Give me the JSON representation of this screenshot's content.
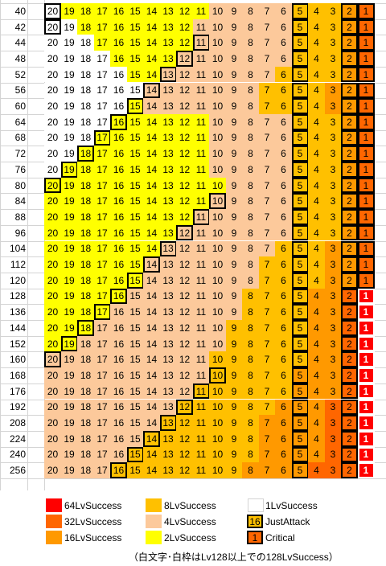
{
  "colors": {
    "lv64": "#ff0000",
    "lv32": "#ff6600",
    "lv16": "#ff9900",
    "lv8": "#ffc000",
    "lv4": "#fcc99b",
    "lv2": "#ffff00",
    "lv1": "#ffffff"
  },
  "row_labels": [
    "40",
    "42",
    "44",
    "48",
    "52",
    "56",
    "60",
    "64",
    "68",
    "72",
    "76",
    "80",
    "84",
    "88",
    "96",
    "104",
    "112",
    "120",
    "128",
    "136",
    "144",
    "152",
    "160",
    "168",
    "176",
    "192",
    "208",
    "224",
    "240",
    "256"
  ],
  "column_values": [
    "20",
    "19",
    "18",
    "17",
    "16",
    "15",
    "14",
    "13",
    "12",
    "11",
    "10",
    "9",
    "8",
    "7",
    "6",
    "5",
    "4",
    "3",
    "2",
    "1"
  ],
  "rows": [
    {
      "t": [
        "1",
        "2",
        "2",
        "2",
        "2",
        "2",
        "2",
        "2",
        "2",
        "2",
        "4",
        "4",
        "4",
        "4",
        "4",
        "8",
        "8",
        "8",
        "16",
        "32"
      ],
      "just": 20
    },
    {
      "t": [
        "1",
        "1",
        "2",
        "2",
        "2",
        "2",
        "2",
        "2",
        "2",
        "4",
        "4",
        "4",
        "4",
        "4",
        "4",
        "8",
        "8",
        "8",
        "16",
        "32"
      ],
      "just": 20
    },
    {
      "t": [
        "1",
        "1",
        "1",
        "2",
        "2",
        "2",
        "2",
        "2",
        "2",
        "4",
        "4",
        "4",
        "4",
        "4",
        "4",
        "8",
        "8",
        "8",
        "16",
        "32"
      ],
      "just": 11
    },
    {
      "t": [
        "1",
        "1",
        "1",
        "1",
        "2",
        "2",
        "2",
        "2",
        "4",
        "4",
        "4",
        "4",
        "4",
        "4",
        "4",
        "8",
        "8",
        "8",
        "16",
        "32"
      ],
      "just": 12
    },
    {
      "t": [
        "1",
        "1",
        "1",
        "1",
        "1",
        "2",
        "2",
        "4",
        "4",
        "4",
        "4",
        "4",
        "4",
        "4",
        "8",
        "8",
        "8",
        "8",
        "16",
        "32"
      ],
      "just": 13
    },
    {
      "t": [
        "1",
        "1",
        "1",
        "1",
        "1",
        "1",
        "4",
        "4",
        "4",
        "4",
        "4",
        "4",
        "4",
        "8",
        "8",
        "8",
        "8",
        "16",
        "16",
        "32"
      ],
      "just": 14
    },
    {
      "t": [
        "1",
        "1",
        "1",
        "1",
        "1",
        "2",
        "4",
        "4",
        "4",
        "4",
        "4",
        "4",
        "4",
        "8",
        "8",
        "8",
        "8",
        "16",
        "16",
        "32"
      ],
      "just": 15
    },
    {
      "t": [
        "1",
        "1",
        "1",
        "1",
        "2",
        "2",
        "2",
        "2",
        "2",
        "2",
        "4",
        "4",
        "4",
        "4",
        "4",
        "8",
        "8",
        "8",
        "16",
        "32"
      ],
      "just": 16
    },
    {
      "t": [
        "1",
        "1",
        "1",
        "2",
        "2",
        "2",
        "2",
        "2",
        "2",
        "2",
        "4",
        "4",
        "4",
        "4",
        "4",
        "8",
        "8",
        "8",
        "16",
        "32"
      ],
      "just": 17
    },
    {
      "t": [
        "1",
        "1",
        "2",
        "2",
        "2",
        "2",
        "2",
        "2",
        "2",
        "2",
        "4",
        "4",
        "4",
        "4",
        "4",
        "8",
        "8",
        "8",
        "16",
        "32"
      ],
      "just": 18
    },
    {
      "t": [
        "1",
        "2",
        "2",
        "2",
        "2",
        "2",
        "2",
        "2",
        "2",
        "2",
        "4",
        "4",
        "4",
        "4",
        "4",
        "8",
        "8",
        "8",
        "16",
        "32"
      ],
      "just": 19
    },
    {
      "t": [
        "2",
        "2",
        "2",
        "2",
        "2",
        "2",
        "2",
        "2",
        "2",
        "2",
        "2",
        "4",
        "4",
        "4",
        "4",
        "8",
        "8",
        "8",
        "16",
        "32"
      ],
      "just": 20
    },
    {
      "t": [
        "2",
        "2",
        "2",
        "2",
        "2",
        "2",
        "2",
        "2",
        "2",
        "2",
        "4",
        "4",
        "4",
        "4",
        "4",
        "8",
        "8",
        "8",
        "16",
        "32"
      ],
      "just": 10
    },
    {
      "t": [
        "2",
        "2",
        "2",
        "2",
        "2",
        "2",
        "2",
        "2",
        "2",
        "4",
        "4",
        "4",
        "4",
        "4",
        "4",
        "8",
        "8",
        "8",
        "16",
        "32"
      ],
      "just": 11
    },
    {
      "t": [
        "2",
        "2",
        "2",
        "2",
        "2",
        "2",
        "2",
        "2",
        "4",
        "4",
        "4",
        "4",
        "4",
        "4",
        "4",
        "8",
        "8",
        "8",
        "16",
        "32"
      ],
      "just": 12
    },
    {
      "t": [
        "2",
        "2",
        "2",
        "2",
        "2",
        "2",
        "2",
        "4",
        "4",
        "4",
        "4",
        "4",
        "4",
        "4",
        "8",
        "8",
        "8",
        "16",
        "16",
        "32"
      ],
      "just": 13
    },
    {
      "t": [
        "2",
        "2",
        "2",
        "2",
        "2",
        "2",
        "4",
        "4",
        "4",
        "4",
        "4",
        "4",
        "4",
        "8",
        "8",
        "8",
        "8",
        "16",
        "16",
        "32"
      ],
      "just": 14
    },
    {
      "t": [
        "2",
        "2",
        "2",
        "2",
        "2",
        "2",
        "4",
        "4",
        "4",
        "4",
        "4",
        "4",
        "4",
        "8",
        "8",
        "8",
        "8",
        "16",
        "16",
        "32"
      ],
      "just": 15
    },
    {
      "t": [
        "2",
        "2",
        "2",
        "2",
        "2",
        "4",
        "4",
        "4",
        "4",
        "4",
        "4",
        "4",
        "8",
        "8",
        "8",
        "8",
        "16",
        "16",
        "32",
        "64"
      ],
      "just": 16
    },
    {
      "t": [
        "2",
        "2",
        "2",
        "2",
        "4",
        "4",
        "4",
        "4",
        "4",
        "4",
        "4",
        "4",
        "8",
        "8",
        "8",
        "8",
        "16",
        "16",
        "32",
        "64"
      ],
      "just": 17
    },
    {
      "t": [
        "2",
        "2",
        "2",
        "4",
        "4",
        "4",
        "4",
        "4",
        "4",
        "4",
        "4",
        "8",
        "8",
        "8",
        "8",
        "8",
        "16",
        "16",
        "32",
        "64"
      ],
      "just": 18
    },
    {
      "t": [
        "2",
        "2",
        "4",
        "4",
        "4",
        "4",
        "4",
        "4",
        "4",
        "4",
        "4",
        "8",
        "8",
        "8",
        "8",
        "8",
        "16",
        "16",
        "32",
        "64"
      ],
      "just": 19
    },
    {
      "t": [
        "4",
        "4",
        "4",
        "4",
        "4",
        "4",
        "4",
        "4",
        "4",
        "4",
        "8",
        "8",
        "8",
        "8",
        "8",
        "8",
        "16",
        "16",
        "32",
        "64"
      ],
      "just": 20
    },
    {
      "t": [
        "4",
        "4",
        "4",
        "4",
        "4",
        "4",
        "4",
        "4",
        "4",
        "4",
        "8",
        "8",
        "8",
        "8",
        "8",
        "16",
        "16",
        "16",
        "32",
        "64"
      ],
      "just": 10
    },
    {
      "t": [
        "4",
        "4",
        "4",
        "4",
        "4",
        "4",
        "4",
        "4",
        "4",
        "8",
        "8",
        "8",
        "8",
        "8",
        "8",
        "16",
        "16",
        "16",
        "32",
        "64"
      ],
      "just": 11
    },
    {
      "t": [
        "4",
        "4",
        "4",
        "4",
        "4",
        "4",
        "4",
        "4",
        "8",
        "8",
        "8",
        "8",
        "8",
        "8",
        "16",
        "16",
        "16",
        "32",
        "32",
        "64"
      ],
      "just": 12
    },
    {
      "t": [
        "4",
        "4",
        "4",
        "4",
        "4",
        "4",
        "4",
        "8",
        "8",
        "8",
        "8",
        "8",
        "8",
        "16",
        "16",
        "16",
        "16",
        "32",
        "32",
        "64"
      ],
      "just": 13
    },
    {
      "t": [
        "4",
        "4",
        "4",
        "4",
        "4",
        "4",
        "8",
        "8",
        "8",
        "8",
        "8",
        "8",
        "8",
        "16",
        "16",
        "16",
        "16",
        "32",
        "32",
        "64"
      ],
      "just": 14
    },
    {
      "t": [
        "4",
        "4",
        "4",
        "4",
        "4",
        "8",
        "8",
        "8",
        "8",
        "8",
        "8",
        "8",
        "8",
        "16",
        "16",
        "16",
        "16",
        "32",
        "32",
        "64"
      ],
      "just": 15
    },
    {
      "t": [
        "4",
        "4",
        "4",
        "4",
        "8",
        "8",
        "8",
        "8",
        "8",
        "8",
        "8",
        "8",
        "16",
        "16",
        "16",
        "16",
        "32",
        "32",
        "32",
        "64"
      ],
      "just": 16
    }
  ],
  "legend": {
    "items": [
      {
        "label": "64LvSuccess",
        "tier": "lv64"
      },
      {
        "label": "32LvSuccess",
        "tier": "lv32"
      },
      {
        "label": "16LvSuccess",
        "tier": "lv16"
      },
      {
        "label": "8LvSuccess",
        "tier": "lv8"
      },
      {
        "label": "4LvSuccess",
        "tier": "lv4"
      },
      {
        "label": "2LvSuccess",
        "tier": "lv2"
      },
      {
        "label": "1LvSuccess",
        "tier": "lv1"
      },
      {
        "label": "JustAttack",
        "tier": "lv8",
        "number": "16"
      },
      {
        "label": "Critical",
        "tier": "lv32",
        "number": "1"
      }
    ],
    "note": "（白文字･白枠はLv128以上での128LvSuccess）"
  }
}
